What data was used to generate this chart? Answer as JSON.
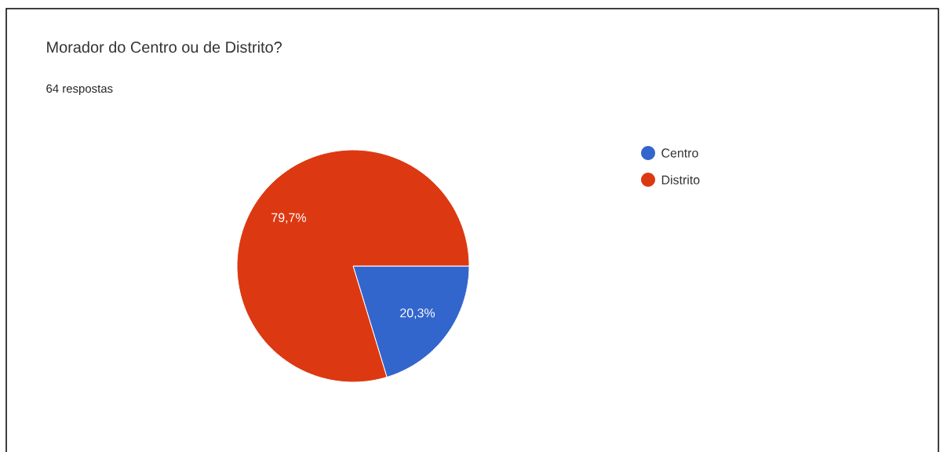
{
  "chart_data": {
    "type": "pie",
    "title": "Morador do Centro ou de Distrito?",
    "subtitle": "64 respostas",
    "categories": [
      "Centro",
      "Distrito"
    ],
    "values": [
      20.3,
      79.7
    ],
    "value_labels": [
      "20,3%",
      "79,7%"
    ],
    "colors": [
      "#3366cc",
      "#dc3912"
    ],
    "legend": "top right"
  }
}
